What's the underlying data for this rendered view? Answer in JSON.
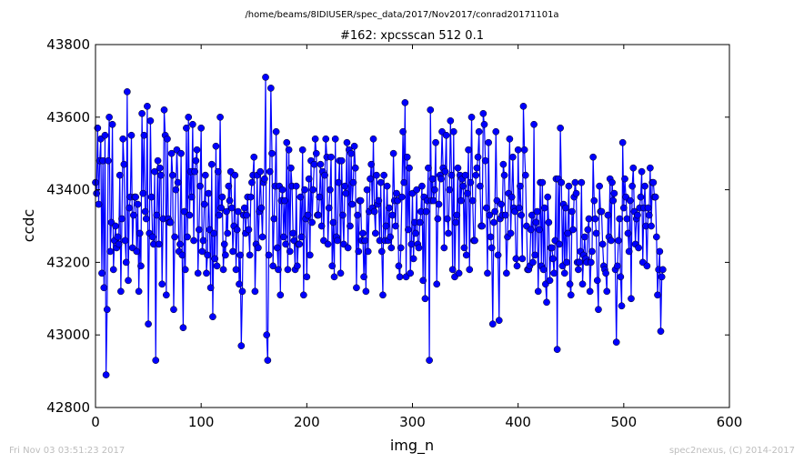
{
  "footer": {
    "timestamp": "Fri Nov 03 03:51:23 2017",
    "credit": "spec2nexus, (C) 2014-2017"
  },
  "chart_data": {
    "type": "line",
    "suptitle": "/home/beams/8IDIUSER/spec_data/2017/Nov2017/conrad20171101a",
    "title": "#162: xpcsscan 512 0.1",
    "xlabel": "img_n",
    "ylabel": "ccdc",
    "xlim": [
      0,
      600
    ],
    "ylim": [
      42800,
      43800
    ],
    "x_ticks": [
      0,
      100,
      200,
      300,
      400,
      500,
      600
    ],
    "y_ticks": [
      42800,
      43000,
      43200,
      43400,
      43600,
      43800
    ],
    "grid": false,
    "marker": "circle",
    "color": "#0000ff",
    "marker_color": "#0000ff",
    "series": [
      {
        "x_start": 0,
        "x_step": 1,
        "values": [
          43420,
          43390,
          43570,
          43360,
          43480,
          43540,
          43170,
          43480,
          43130,
          43550,
          42890,
          43070,
          43480,
          43600,
          43230,
          43310,
          43580,
          43180,
          43260,
          43300,
          43240,
          43270,
          43250,
          43440,
          43120,
          43320,
          43540,
          43470,
          43260,
          43200,
          43670,
          43150,
          43350,
          43380,
          43550,
          43240,
          43330,
          43380,
          43380,
          43230,
          43360,
          43120,
          43280,
          43190,
          43610,
          43390,
          43550,
          43340,
          43320,
          43630,
          43030,
          43280,
          43590,
          43380,
          43270,
          43250,
          43450,
          42930,
          43330,
          43480,
          43250,
          43460,
          43440,
          43140,
          43320,
          43620,
          43550,
          43110,
          43540,
          43320,
          43310,
          43310,
          43500,
          43440,
          43070,
          43270,
          43400,
          43510,
          43420,
          43230,
          43250,
          43500,
          43220,
          43020,
          43340,
          43180,
          43570,
          43270,
          43600,
          43330,
          43450,
          43380,
          43580,
          43260,
          43450,
          43480,
          43510,
          43170,
          43290,
          43410,
          43570,
          43230,
          43260,
          43360,
          43440,
          43170,
          43220,
          43390,
          43290,
          43130,
          43470,
          43050,
          43280,
          43210,
          43520,
          43190,
          43450,
          43330,
          43600,
          43350,
          43380,
          43180,
          43250,
          43220,
          43340,
          43280,
          43410,
          43370,
          43450,
          43350,
          43230,
          43300,
          43440,
          43180,
          43290,
          43340,
          43140,
          43220,
          42970,
          43120,
          43330,
          43350,
          43280,
          43330,
          43380,
          43290,
          43220,
          43380,
          43420,
          43440,
          43490,
          43120,
          43250,
          43440,
          43240,
          43340,
          43450,
          43350,
          43270,
          43420,
          43430,
          43710,
          43000,
          42930,
          43220,
          43450,
          43680,
          43500,
          43190,
          43320,
          43410,
          43560,
          43240,
          43180,
          43410,
          43110,
          43370,
          43400,
          43270,
          43370,
          43250,
          43530,
          43180,
          43510,
          43230,
          43460,
          43410,
          43280,
          43260,
          43180,
          43410,
          43190,
          43250,
          43250,
          43380,
          43270,
          43510,
          43110,
          43400,
          43320,
          43160,
          43330,
          43430,
          43220,
          43480,
          43310,
          43400,
          43470,
          43540,
          43500,
          43330,
          43330,
          43380,
          43470,
          43300,
          43450,
          43260,
          43440,
          43540,
          43490,
          43250,
          43350,
          43400,
          43490,
          43190,
          43310,
          43160,
          43540,
          43270,
          43260,
          43420,
          43480,
          43170,
          43480,
          43330,
          43250,
          43410,
          43390,
          43530,
          43240,
          43510,
          43300,
          43500,
          43360,
          43420,
          43520,
          43460,
          43130,
          43330,
          43230,
          43370,
          43370,
          43260,
          43280,
          43160,
          43260,
          43120,
          43400,
          43230,
          43340,
          43430,
          43470,
          43350,
          43540,
          43340,
          43280,
          43440,
          43360,
          43370,
          43260,
          43420,
          43230,
          43110,
          43440,
          43260,
          43300,
          43410,
          43260,
          43350,
          43270,
          43240,
          43330,
          43500,
          43370,
          43300,
          43390,
          43370,
          43190,
          43160,
          43240,
          43380,
          43560,
          43420,
          43640,
          43160,
          43490,
          43290,
          43460,
          43170,
          43250,
          43390,
          43210,
          43310,
          43280,
          43400,
          43250,
          43240,
          43310,
          43340,
          43410,
          43150,
          43380,
          43100,
          43340,
          43370,
          43460,
          42930,
          43620,
          43370,
          43430,
          43370,
          43400,
          43530,
          43140,
          43320,
          43360,
          43440,
          43430,
          43560,
          43460,
          43240,
          43450,
          43550,
          43320,
          43280,
          43400,
          43590,
          43440,
          43180,
          43560,
          43160,
          43310,
          43330,
          43460,
          43170,
          43440,
          43370,
          43430,
          43410,
          43240,
          43440,
          43220,
          43390,
          43510,
          43180,
          43420,
          43600,
          43370,
          43260,
          43260,
          43440,
          43460,
          43490,
          43560,
          43410,
          43300,
          43300,
          43610,
          43580,
          43480,
          43350,
          43170,
          43530,
          43330,
          43270,
          43240,
          43030,
          43310,
          43340,
          43560,
          43370,
          43220,
          43040,
          43320,
          43360,
          43330,
          43470,
          43440,
          43330,
          43170,
          43270,
          43390,
          43540,
          43280,
          43380,
          43490,
          43350,
          43340,
          43210,
          43190,
          43510,
          43350,
          43410,
          43330,
          43210,
          43630,
          43510,
          43440,
          43300,
          43180,
          43180,
          43190,
          43290,
          43330,
          43200,
          43580,
          43220,
          43310,
          43340,
          43120,
          43290,
          43420,
          43190,
          43420,
          43180,
          43350,
          43140,
          43090,
          43380,
          43310,
          43150,
          43240,
          43240,
          43210,
          43170,
          43260,
          43430,
          42960,
          43430,
          43250,
          43570,
          43420,
          43190,
          43360,
          43170,
          43350,
          43200,
          43280,
          43410,
          43140,
          43110,
          43340,
          43290,
          43380,
          43420,
          43390,
          43200,
          43180,
          43200,
          43230,
          43420,
          43140,
          43220,
          43270,
          43210,
          43200,
          43290,
          43320,
          43120,
          43200,
          43230,
          43490,
          43370,
          43320,
          43280,
          43150,
          43070,
          43410,
          43340,
          43340,
          43250,
          43190,
          43180,
          43170,
          43120,
          43330,
          43270,
          43430,
          43260,
          43420,
          43370,
          43390,
          43180,
          42980,
          43190,
          43260,
          43320,
          43160,
          43080,
          43530,
          43350,
          43430,
          43380,
          43320,
          43280,
          43230,
          43370,
          43100,
          43410,
          43460,
          43340,
          43250,
          43320,
          43330,
          43240,
          43350,
          43380,
          43450,
          43200,
          43350,
          43410,
          43300,
          43190,
          43350,
          43330,
          43460,
          43300,
          43420,
          43420,
          43380,
          43380,
          43270,
          43110,
          43180,
          43230,
          43010,
          43160,
          43180
        ]
      }
    ]
  }
}
